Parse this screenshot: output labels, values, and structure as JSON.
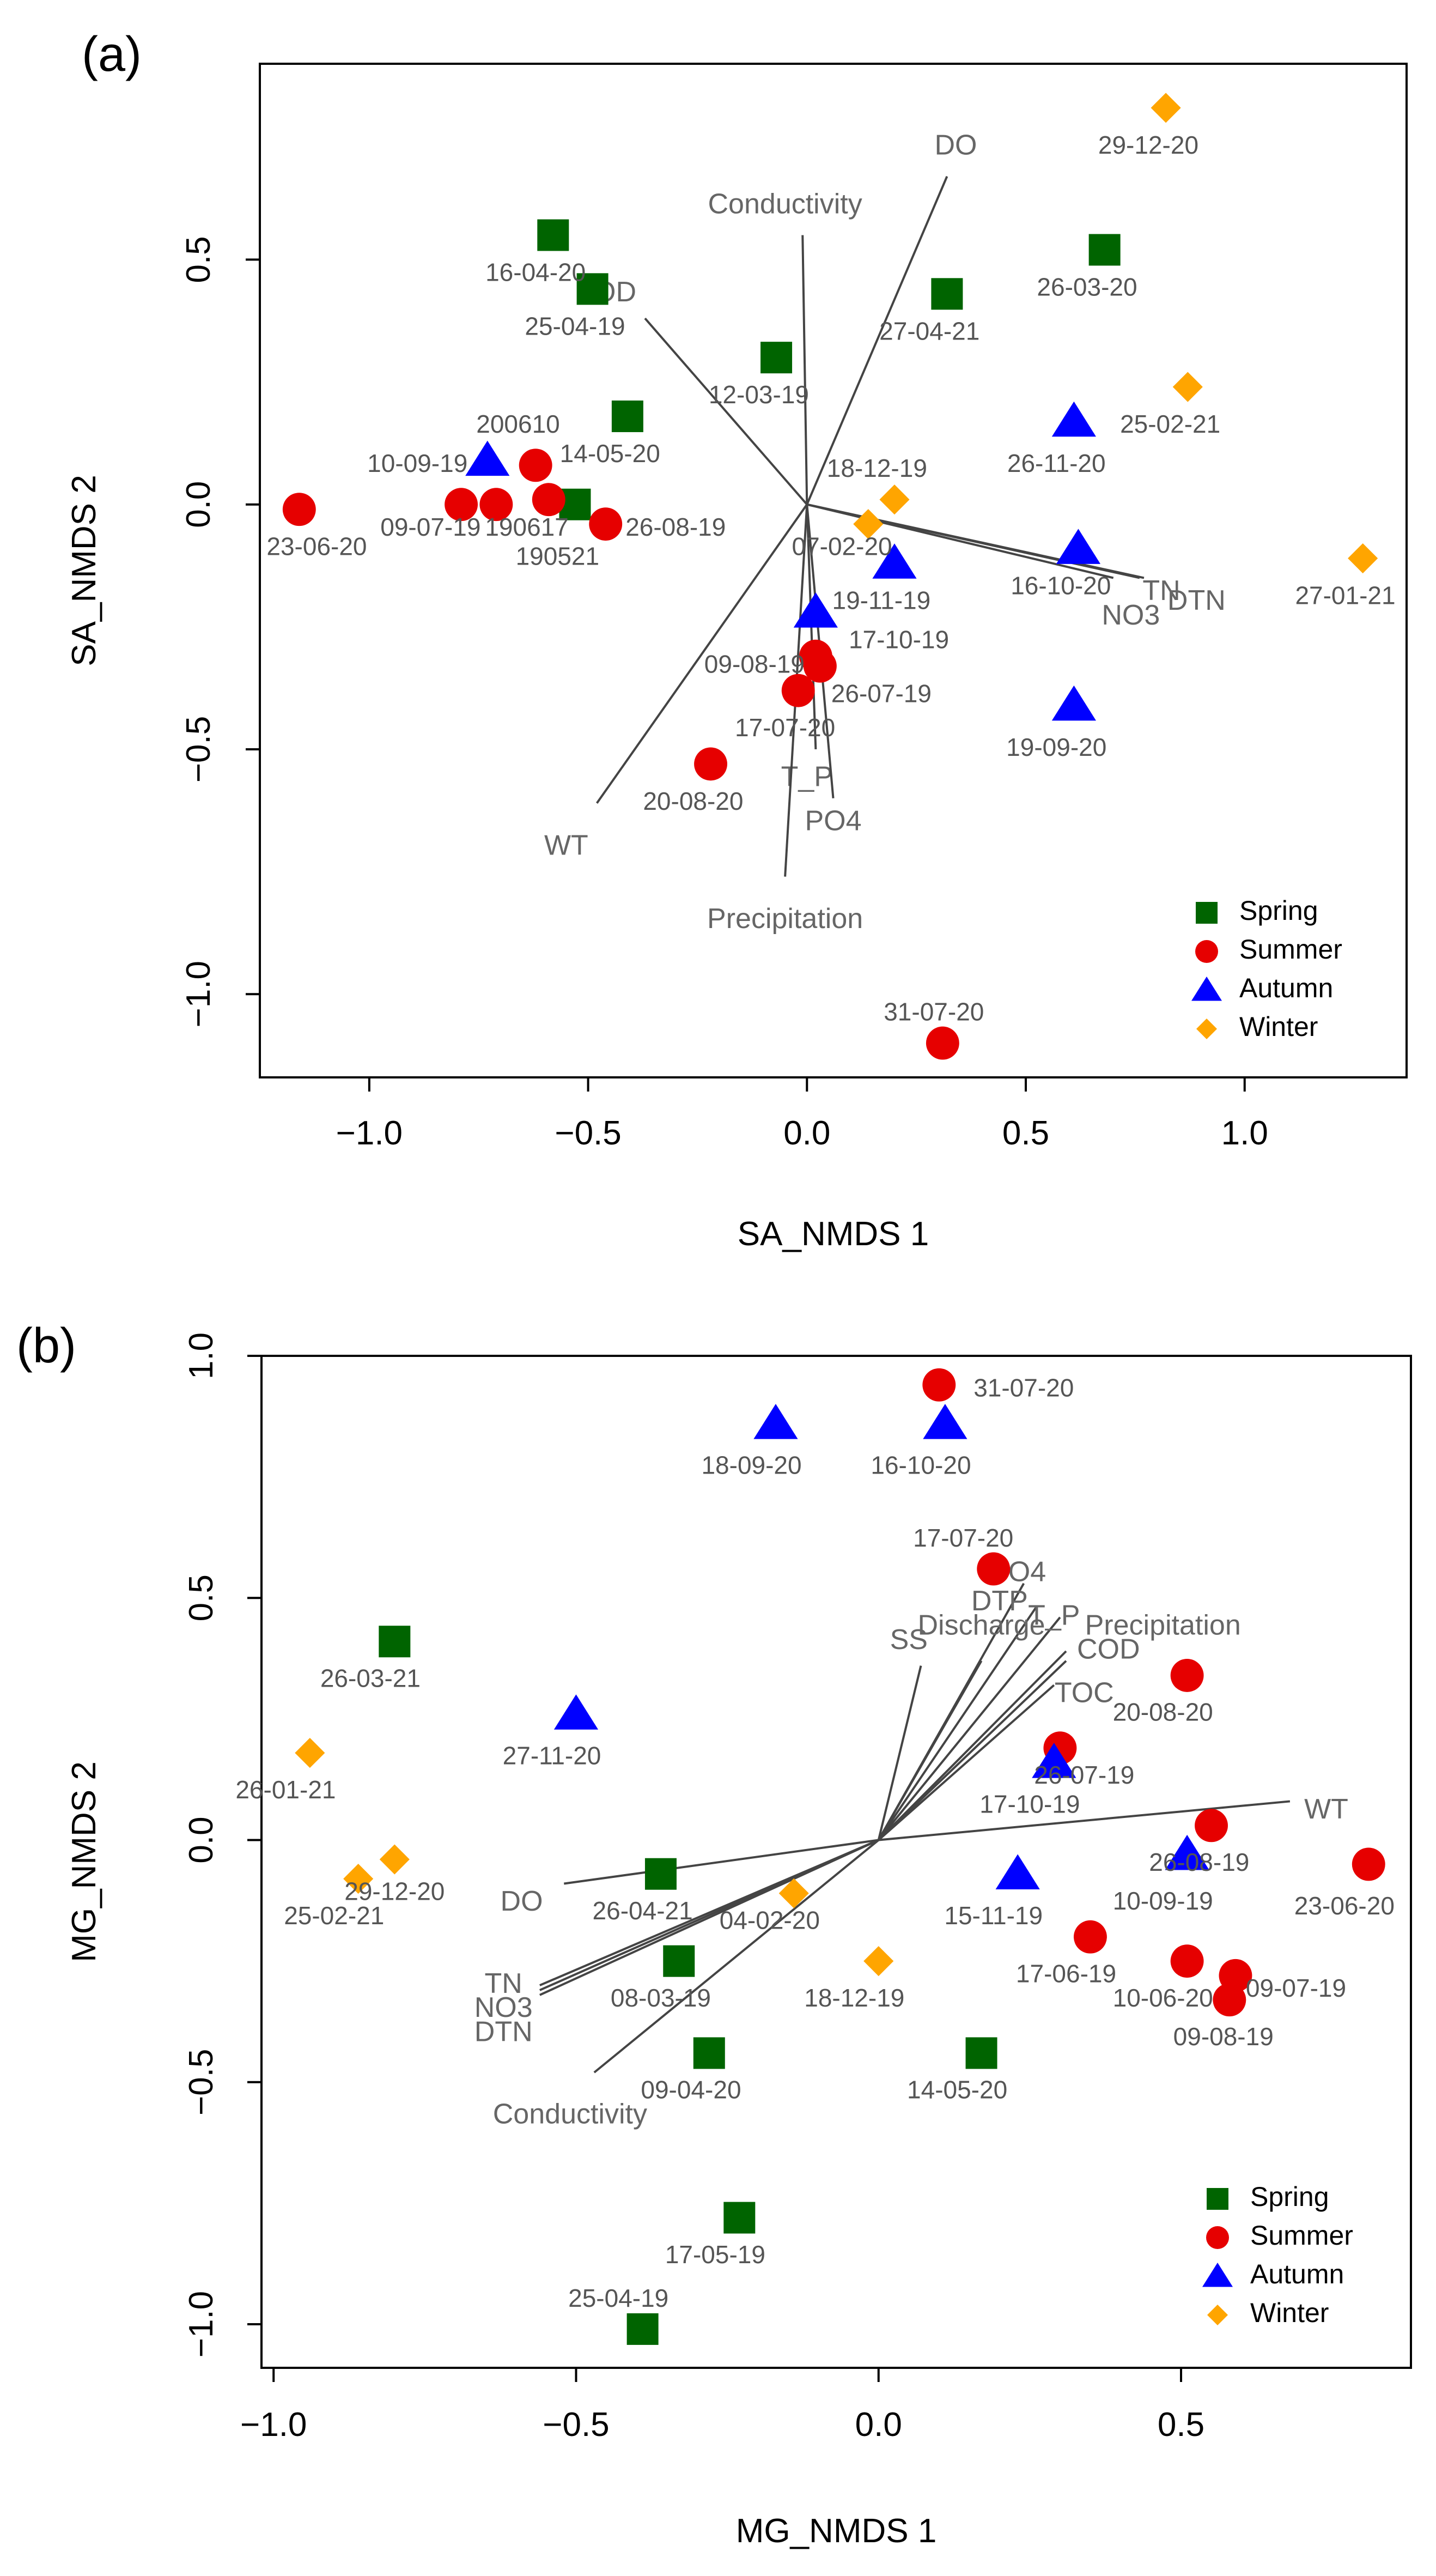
{
  "colors": {
    "spring": "#006400",
    "summer": "#e60000",
    "autumn": "#0000ff",
    "winter": "#ffa500",
    "vector": "#444444",
    "axis": "#000000"
  },
  "chart_data": [
    {
      "type": "scatter",
      "panel_label": "(a)",
      "xlabel": "SA_NMDS 1",
      "ylabel": "SA_NMDS 2",
      "xlim": [
        -1.25,
        1.37
      ],
      "ylim": [
        -1.17,
        0.9
      ],
      "xticks": [
        -1.0,
        -0.5,
        0.0,
        0.5,
        1.0
      ],
      "xtick_labels": [
        "−1.0",
        "−0.5",
        "0.0",
        "0.5",
        "1.0"
      ],
      "yticks": [
        -1.0,
        -0.5,
        0.0,
        0.5
      ],
      "ytick_labels": [
        "−1.0",
        "−0.5",
        "0.0",
        "0.5"
      ],
      "legend": [
        {
          "season": "spring",
          "label": "Spring",
          "shape": "square"
        },
        {
          "season": "summer",
          "label": "Summer",
          "shape": "circle"
        },
        {
          "season": "autumn",
          "label": "Autumn",
          "shape": "triangle"
        },
        {
          "season": "winter",
          "label": "Winter",
          "shape": "diamond"
        }
      ],
      "points": [
        {
          "label": "16-04-20",
          "season": "spring",
          "x": -0.58,
          "y": 0.55,
          "lx": -0.62,
          "ly": 0.47
        },
        {
          "label": "25-04-19",
          "season": "spring",
          "x": -0.49,
          "y": 0.44,
          "lx": -0.53,
          "ly": 0.36
        },
        {
          "label": "27-04-21",
          "season": "spring",
          "x": 0.32,
          "y": 0.43,
          "lx": 0.28,
          "ly": 0.35
        },
        {
          "label": "26-03-20",
          "season": "spring",
          "x": 0.68,
          "y": 0.52,
          "lx": 0.64,
          "ly": 0.44
        },
        {
          "label": "12-03-19",
          "season": "spring",
          "x": -0.07,
          "y": 0.3,
          "lx": -0.11,
          "ly": 0.22
        },
        {
          "label": "14-05-20",
          "season": "spring",
          "x": -0.41,
          "y": 0.18,
          "lx": -0.45,
          "ly": 0.1
        },
        {
          "label": "",
          "season": "spring",
          "x": -0.53,
          "y": 0.0,
          "lx": 0,
          "ly": 0
        },
        {
          "label": "200610",
          "season": "summer",
          "x": -0.62,
          "y": 0.08,
          "lx": -0.66,
          "ly": 0.16
        },
        {
          "label": "190617",
          "season": "summer",
          "x": -0.71,
          "y": 0.0,
          "lx": -0.64,
          "ly": -0.05
        },
        {
          "label": "190521",
          "season": "summer",
          "x": -0.59,
          "y": 0.01,
          "lx": -0.57,
          "ly": -0.11
        },
        {
          "label": "23-06-20",
          "season": "summer",
          "x": -1.16,
          "y": -0.01,
          "lx": -1.12,
          "ly": -0.09
        },
        {
          "label": "09-07-19",
          "season": "summer",
          "x": -0.79,
          "y": 0.0,
          "lx": -0.86,
          "ly": -0.05
        },
        {
          "label": "26-08-19",
          "season": "summer",
          "x": -0.46,
          "y": -0.04,
          "lx": -0.3,
          "ly": -0.05
        },
        {
          "label": "09-08-19",
          "season": "summer",
          "x": 0.02,
          "y": -0.31,
          "lx": -0.12,
          "ly": -0.33
        },
        {
          "label": "26-07-19",
          "season": "summer",
          "x": 0.03,
          "y": -0.33,
          "lx": 0.17,
          "ly": -0.39
        },
        {
          "label": "17-07-20",
          "season": "summer",
          "x": -0.02,
          "y": -0.38,
          "lx": -0.05,
          "ly": -0.46
        },
        {
          "label": "20-08-20",
          "season": "summer",
          "x": -0.22,
          "y": -0.53,
          "lx": -0.26,
          "ly": -0.61
        },
        {
          "label": "31-07-20",
          "season": "summer",
          "x": 0.31,
          "y": -1.1,
          "lx": 0.29,
          "ly": -1.04
        },
        {
          "label": "10-09-19",
          "season": "autumn",
          "x": -0.73,
          "y": 0.09,
          "lx": -0.89,
          "ly": 0.08
        },
        {
          "label": "26-11-20",
          "season": "autumn",
          "x": 0.61,
          "y": 0.17,
          "lx": 0.57,
          "ly": 0.08
        },
        {
          "label": "16-10-20",
          "season": "autumn",
          "x": 0.62,
          "y": -0.09,
          "lx": 0.58,
          "ly": -0.17
        },
        {
          "label": "19-11-19",
          "season": "autumn",
          "x": 0.2,
          "y": -0.12,
          "lx": 0.17,
          "ly": -0.2
        },
        {
          "label": "17-10-19",
          "season": "autumn",
          "x": 0.02,
          "y": -0.22,
          "lx": 0.21,
          "ly": -0.28
        },
        {
          "label": "19-09-20",
          "season": "autumn",
          "x": 0.61,
          "y": -0.41,
          "lx": 0.57,
          "ly": -0.5
        },
        {
          "label": "29-12-20",
          "season": "winter",
          "x": 0.82,
          "y": 0.81,
          "lx": 0.78,
          "ly": 0.73
        },
        {
          "label": "25-02-21",
          "season": "winter",
          "x": 0.87,
          "y": 0.24,
          "lx": 0.83,
          "ly": 0.16
        },
        {
          "label": "18-12-19",
          "season": "winter",
          "x": 0.2,
          "y": 0.01,
          "lx": 0.16,
          "ly": 0.07
        },
        {
          "label": "07-02-20",
          "season": "winter",
          "x": 0.14,
          "y": -0.04,
          "lx": 0.08,
          "ly": -0.09
        },
        {
          "label": "27-01-21",
          "season": "winter",
          "x": 1.27,
          "y": -0.11,
          "lx": 1.23,
          "ly": -0.19
        }
      ],
      "vectors": [
        {
          "label": "DO",
          "x": 0.32,
          "y": 0.67,
          "lx": 0.34,
          "ly": 0.73
        },
        {
          "label": "Conductivity",
          "x": -0.01,
          "y": 0.55,
          "lx": -0.05,
          "ly": 0.61
        },
        {
          "label": "BOD",
          "x": -0.37,
          "y": 0.38,
          "lx": -0.46,
          "ly": 0.43
        },
        {
          "label": "TN",
          "x": 0.76,
          "y": -0.15,
          "lx": 0.81,
          "ly": -0.18
        },
        {
          "label": "DTN",
          "x": 0.77,
          "y": -0.15,
          "lx": 0.89,
          "ly": -0.2
        },
        {
          "label": "NO3",
          "x": 0.7,
          "y": -0.15,
          "lx": 0.74,
          "ly": -0.23
        },
        {
          "label": "T_P",
          "x": 0.02,
          "y": -0.5,
          "lx": 0.0,
          "ly": -0.56
        },
        {
          "label": "PO4",
          "x": 0.06,
          "y": -0.6,
          "lx": 0.06,
          "ly": -0.65
        },
        {
          "label": "WT",
          "x": -0.48,
          "y": -0.61,
          "lx": -0.55,
          "ly": -0.7
        },
        {
          "label": "Precipitation",
          "x": -0.05,
          "y": -0.76,
          "lx": -0.05,
          "ly": -0.85
        }
      ]
    },
    {
      "type": "scatter",
      "panel_label": "(b)",
      "xlabel": "MG_NMDS 1",
      "ylabel": "MG_NMDS 2",
      "xlim": [
        -1.02,
        0.88
      ],
      "ylim": [
        -1.09,
        1.0
      ],
      "xticks": [
        -1.0,
        -0.5,
        0.0,
        0.5
      ],
      "xtick_labels": [
        "−1.0",
        "−0.5",
        "0.0",
        "0.5"
      ],
      "yticks": [
        -1.0,
        -0.5,
        0.0,
        0.5,
        1.0
      ],
      "ytick_labels": [
        "−1.0",
        "−0.5",
        "0.0",
        "0.5",
        "1.0"
      ],
      "legend": [
        {
          "season": "spring",
          "label": "Spring",
          "shape": "square"
        },
        {
          "season": "summer",
          "label": "Summer",
          "shape": "circle"
        },
        {
          "season": "autumn",
          "label": "Autumn",
          "shape": "triangle"
        },
        {
          "season": "winter",
          "label": "Winter",
          "shape": "diamond"
        }
      ],
      "points": [
        {
          "label": "26-03-21",
          "season": "spring",
          "x": -0.8,
          "y": 0.41,
          "lx": -0.84,
          "ly": 0.33
        },
        {
          "label": "26-04-21",
          "season": "spring",
          "x": -0.36,
          "y": -0.07,
          "lx": -0.39,
          "ly": -0.15
        },
        {
          "label": "08-03-19",
          "season": "spring",
          "x": -0.33,
          "y": -0.25,
          "lx": -0.36,
          "ly": -0.33
        },
        {
          "label": "09-04-20",
          "season": "spring",
          "x": -0.28,
          "y": -0.44,
          "lx": -0.31,
          "ly": -0.52
        },
        {
          "label": "14-05-20",
          "season": "spring",
          "x": 0.17,
          "y": -0.44,
          "lx": 0.13,
          "ly": -0.52
        },
        {
          "label": "17-05-19",
          "season": "spring",
          "x": -0.23,
          "y": -0.78,
          "lx": -0.27,
          "ly": -0.86
        },
        {
          "label": "25-04-19",
          "season": "spring",
          "x": -0.39,
          "y": -1.01,
          "lx": -0.43,
          "ly": -0.95
        },
        {
          "label": "31-07-20",
          "season": "summer",
          "x": 0.1,
          "y": 0.94,
          "lx": 0.24,
          "ly": 0.93
        },
        {
          "label": "17-07-20",
          "season": "summer",
          "x": 0.19,
          "y": 0.56,
          "lx": 0.14,
          "ly": 0.62
        },
        {
          "label": "20-08-20",
          "season": "summer",
          "x": 0.51,
          "y": 0.34,
          "lx": 0.47,
          "ly": 0.26
        },
        {
          "label": "26-07-19",
          "season": "summer",
          "x": 0.3,
          "y": 0.19,
          "lx": 0.34,
          "ly": 0.13
        },
        {
          "label": "26-08-19",
          "season": "summer",
          "x": 0.55,
          "y": 0.03,
          "lx": 0.53,
          "ly": -0.05
        },
        {
          "label": "23-06-20",
          "season": "summer",
          "x": 0.81,
          "y": -0.05,
          "lx": 0.77,
          "ly": -0.14
        },
        {
          "label": "17-06-19",
          "season": "summer",
          "x": 0.35,
          "y": -0.2,
          "lx": 0.31,
          "ly": -0.28
        },
        {
          "label": "10-06-20",
          "season": "summer",
          "x": 0.51,
          "y": -0.25,
          "lx": 0.47,
          "ly": -0.33
        },
        {
          "label": "09-07-19",
          "season": "summer",
          "x": 0.59,
          "y": -0.28,
          "lx": 0.69,
          "ly": -0.31
        },
        {
          "label": "09-08-19",
          "season": "summer",
          "x": 0.58,
          "y": -0.33,
          "lx": 0.57,
          "ly": -0.41
        },
        {
          "label": "18-09-20",
          "season": "autumn",
          "x": -0.17,
          "y": 0.86,
          "lx": -0.21,
          "ly": 0.77
        },
        {
          "label": "16-10-20",
          "season": "autumn",
          "x": 0.11,
          "y": 0.86,
          "lx": 0.07,
          "ly": 0.77
        },
        {
          "label": "27-11-20",
          "season": "autumn",
          "x": -0.5,
          "y": 0.26,
          "lx": -0.54,
          "ly": 0.17
        },
        {
          "label": "17-10-19",
          "season": "autumn",
          "x": 0.29,
          "y": 0.16,
          "lx": 0.25,
          "ly": 0.07
        },
        {
          "label": "15-11-19",
          "season": "autumn",
          "x": 0.23,
          "y": -0.07,
          "lx": 0.19,
          "ly": -0.16
        },
        {
          "label": "10-09-19",
          "season": "autumn",
          "x": 0.51,
          "y": -0.03,
          "lx": 0.47,
          "ly": -0.13
        },
        {
          "label": "26-01-21",
          "season": "winter",
          "x": -0.94,
          "y": 0.18,
          "lx": -0.98,
          "ly": 0.1
        },
        {
          "label": "25-02-21",
          "season": "winter",
          "x": -0.86,
          "y": -0.08,
          "lx": -0.9,
          "ly": -0.16
        },
        {
          "label": "29-12-20",
          "season": "winter",
          "x": -0.8,
          "y": -0.04,
          "lx": -0.8,
          "ly": -0.11
        },
        {
          "label": "04-02-20",
          "season": "winter",
          "x": -0.14,
          "y": -0.11,
          "lx": -0.18,
          "ly": -0.17
        },
        {
          "label": "18-12-19",
          "season": "winter",
          "x": 0.0,
          "y": -0.25,
          "lx": -0.04,
          "ly": -0.33
        }
      ],
      "vectors": [
        {
          "label": "PO4",
          "x": 0.24,
          "y": 0.53,
          "lx": 0.23,
          "ly": 0.55
        },
        {
          "label": "DTP",
          "x": 0.26,
          "y": 0.48,
          "lx": 0.2,
          "ly": 0.49
        },
        {
          "label": "T_P",
          "x": 0.3,
          "y": 0.46,
          "lx": 0.29,
          "ly": 0.46
        },
        {
          "label": "SS",
          "x": 0.07,
          "y": 0.36,
          "lx": 0.05,
          "ly": 0.41
        },
        {
          "label": "Discharge",
          "x": 0.17,
          "y": 0.37,
          "lx": 0.17,
          "ly": 0.44
        },
        {
          "label": "Precipitation",
          "x": 0.31,
          "y": 0.39,
          "lx": 0.47,
          "ly": 0.44
        },
        {
          "label": "COD",
          "x": 0.31,
          "y": 0.37,
          "lx": 0.38,
          "ly": 0.39
        },
        {
          "label": "TOC",
          "x": 0.29,
          "y": 0.32,
          "lx": 0.34,
          "ly": 0.3
        },
        {
          "label": "WT",
          "x": 0.68,
          "y": 0.08,
          "lx": 0.74,
          "ly": 0.06
        },
        {
          "label": "DO",
          "x": -0.52,
          "y": -0.09,
          "lx": -0.59,
          "ly": -0.13
        },
        {
          "label": "TN",
          "x": -0.56,
          "y": -0.3,
          "lx": -0.62,
          "ly": -0.3
        },
        {
          "label": "NO3",
          "x": -0.56,
          "y": -0.31,
          "lx": -0.62,
          "ly": -0.35
        },
        {
          "label": "DTN",
          "x": -0.56,
          "y": -0.32,
          "lx": -0.62,
          "ly": -0.4
        },
        {
          "label": "Conductivity",
          "x": -0.47,
          "y": -0.48,
          "lx": -0.51,
          "ly": -0.57
        }
      ]
    }
  ]
}
